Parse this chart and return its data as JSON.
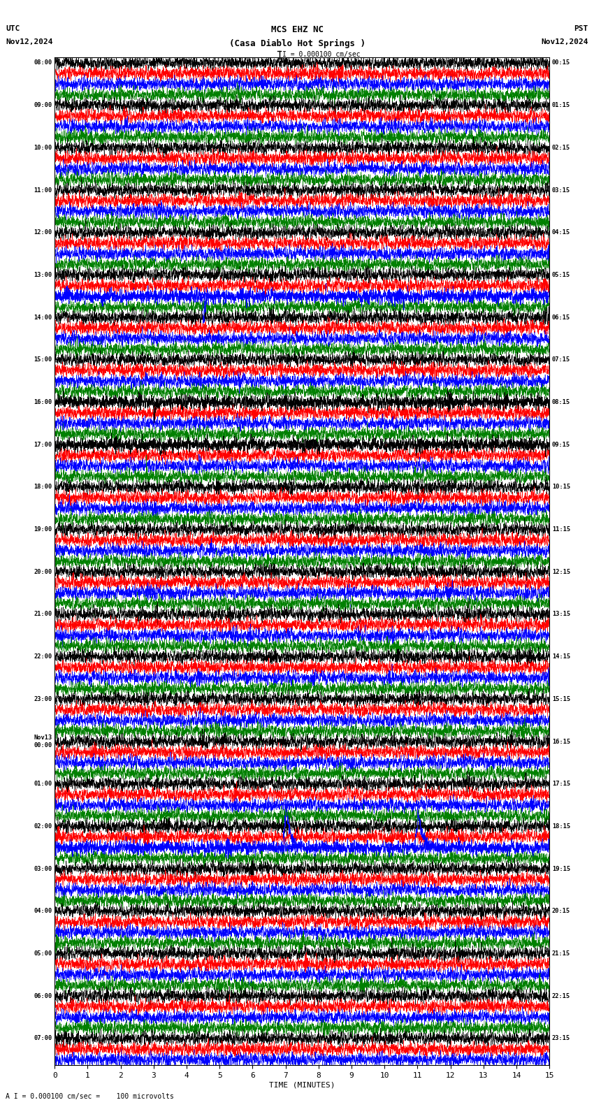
{
  "title_line1": "MCS EHZ NC",
  "title_line2": "(Casa Diablo Hot Springs )",
  "title_scale": "I = 0.000100 cm/sec",
  "utc_label": "UTC",
  "utc_date": "Nov12,2024",
  "pst_label": "PST",
  "pst_date": "Nov12,2024",
  "bottom_label": "TIME (MINUTES)",
  "bottom_note": "A I = 0.000100 cm/sec =    100 microvolts",
  "xlabel_ticks": [
    0,
    1,
    2,
    3,
    4,
    5,
    6,
    7,
    8,
    9,
    10,
    11,
    12,
    13,
    14,
    15
  ],
  "colors": [
    "black",
    "red",
    "blue",
    "green"
  ],
  "left_time_labels": [
    "08:00",
    "",
    "",
    "",
    "09:00",
    "",
    "",
    "",
    "10:00",
    "",
    "",
    "",
    "11:00",
    "",
    "",
    "",
    "12:00",
    "",
    "",
    "",
    "13:00",
    "",
    "",
    "",
    "14:00",
    "",
    "",
    "",
    "15:00",
    "",
    "",
    "",
    "16:00",
    "",
    "",
    "",
    "17:00",
    "",
    "",
    "",
    "18:00",
    "",
    "",
    "",
    "19:00",
    "",
    "",
    "",
    "20:00",
    "",
    "",
    "",
    "21:00",
    "",
    "",
    "",
    "22:00",
    "",
    "",
    "",
    "23:00",
    "",
    "",
    "",
    "Nov13\n00:00",
    "",
    "",
    "",
    "01:00",
    "",
    "",
    "",
    "02:00",
    "",
    "",
    "",
    "03:00",
    "",
    "",
    "",
    "04:00",
    "",
    "",
    "",
    "05:00",
    "",
    "",
    "",
    "06:00",
    "",
    "",
    "",
    "07:00",
    "",
    ""
  ],
  "right_time_labels": [
    "00:15",
    "",
    "",
    "",
    "01:15",
    "",
    "",
    "",
    "02:15",
    "",
    "",
    "",
    "03:15",
    "",
    "",
    "",
    "04:15",
    "",
    "",
    "",
    "05:15",
    "",
    "",
    "",
    "06:15",
    "",
    "",
    "",
    "07:15",
    "",
    "",
    "",
    "08:15",
    "",
    "",
    "",
    "09:15",
    "",
    "",
    "",
    "10:15",
    "",
    "",
    "",
    "11:15",
    "",
    "",
    "",
    "12:15",
    "",
    "",
    "",
    "13:15",
    "",
    "",
    "",
    "14:15",
    "",
    "",
    "",
    "15:15",
    "",
    "",
    "",
    "16:15",
    "",
    "",
    "",
    "17:15",
    "",
    "",
    "",
    "18:15",
    "",
    "",
    "",
    "19:15",
    "",
    "",
    "",
    "20:15",
    "",
    "",
    "",
    "21:15",
    "",
    "",
    "",
    "22:15",
    "",
    "",
    "",
    "23:15",
    "",
    ""
  ],
  "n_rows": 95,
  "n_cols": 4500,
  "bg_color": "white",
  "waveform_amplitude": 0.28,
  "figsize": [
    8.5,
    15.84
  ],
  "dpi": 100
}
